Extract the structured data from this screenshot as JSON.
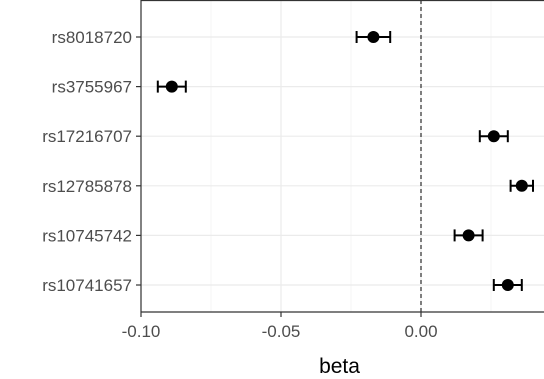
{
  "chart_data": {
    "type": "scatter",
    "title": "",
    "xlabel": "beta",
    "ylabel": "",
    "xlim": [
      -0.1,
      0.045
    ],
    "x_ticks": [
      -0.1,
      -0.05,
      0.0
    ],
    "x_tick_labels": [
      "-0.10",
      "-0.05",
      "0.00"
    ],
    "reference_line": {
      "x": 0,
      "style": "dashed"
    },
    "grid": true,
    "panel_border": true,
    "categories": [
      "rs8018720",
      "rs3755967",
      "rs17216707",
      "rs12785878",
      "rs10745742",
      "rs10741657"
    ],
    "points": [
      {
        "snp": "rs8018720",
        "beta": -0.017,
        "lower": -0.023,
        "upper": -0.011
      },
      {
        "snp": "rs3755967",
        "beta": -0.089,
        "lower": -0.094,
        "upper": -0.084
      },
      {
        "snp": "rs17216707",
        "beta": 0.026,
        "lower": 0.021,
        "upper": 0.031
      },
      {
        "snp": "rs12785878",
        "beta": 0.036,
        "lower": 0.032,
        "upper": 0.04
      },
      {
        "snp": "rs10745742",
        "beta": 0.017,
        "lower": 0.012,
        "upper": 0.022
      },
      {
        "snp": "rs10741657",
        "beta": 0.031,
        "lower": 0.026,
        "upper": 0.036
      }
    ],
    "colors": {
      "point": "#000000",
      "grid_major": "#ebebeb",
      "grid_minor": "#f5f5f5",
      "border": "#333333",
      "tick_text": "#4d4d4d"
    }
  }
}
